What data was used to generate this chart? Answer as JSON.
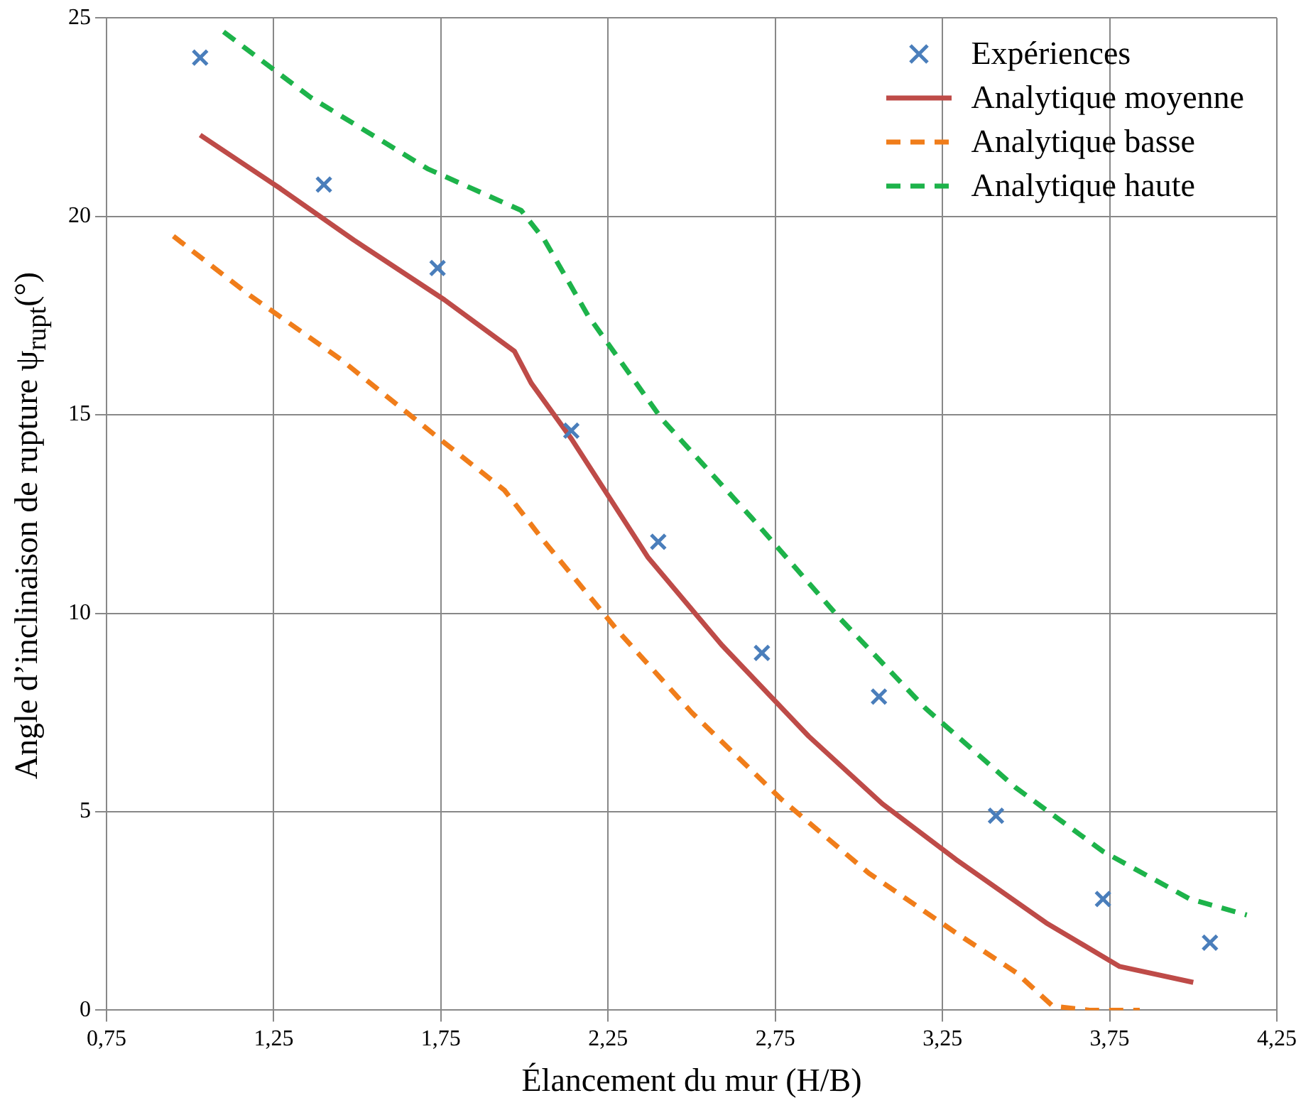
{
  "chart_data": {
    "type": "line",
    "xlabel": "Élancement du mur (H/B)",
    "ylabel": "Angle d’inclinaison de rupture ψ$_{rupt}$(°)",
    "xlim": [
      0.75,
      4.25
    ],
    "xticks": [
      {
        "value": 0.75,
        "label": "0,75"
      },
      {
        "value": 1.25,
        "label": "1,25"
      },
      {
        "value": 1.75,
        "label": "1,75"
      },
      {
        "value": 2.25,
        "label": "2,25"
      },
      {
        "value": 2.75,
        "label": "2,75"
      },
      {
        "value": 3.25,
        "label": "3,25"
      },
      {
        "value": 3.75,
        "label": "3,75"
      },
      {
        "value": 4.25,
        "label": "4,25"
      }
    ],
    "ylim": [
      0,
      25
    ],
    "yticks": [
      0,
      5,
      10,
      15,
      20,
      25
    ],
    "grid": true,
    "legend": "top right",
    "series": [
      {
        "name": "Expériences",
        "type": "scatter",
        "marker": "cross",
        "color": "#4a7ebb",
        "x": [
          1.03,
          1.4,
          1.74,
          2.14,
          2.4,
          2.71,
          3.06,
          3.41,
          3.73,
          4.05
        ],
        "values": [
          24.0,
          20.8,
          18.7,
          14.6,
          11.8,
          9.0,
          7.9,
          4.9,
          2.8,
          1.7
        ]
      },
      {
        "name": "Analytique moyenne",
        "type": "line",
        "line_style": "solid",
        "color": "#be4b48",
        "x": [
          1.03,
          1.27,
          1.49,
          1.76,
          1.97,
          2.02,
          2.14,
          2.37,
          2.59,
          2.85,
          3.07,
          3.29,
          3.56,
          3.78,
          4.0
        ],
        "values": [
          22.05,
          20.7,
          19.4,
          17.9,
          16.6,
          15.8,
          14.4,
          11.4,
          9.2,
          6.9,
          5.2,
          3.8,
          2.2,
          1.1,
          0.7
        ]
      },
      {
        "name": "Analytique basse",
        "type": "line",
        "line_style": "dashed",
        "color": "#f07d1a",
        "x": [
          0.95,
          1.18,
          1.45,
          1.76,
          1.94,
          2.06,
          2.28,
          2.5,
          2.77,
          3.03,
          3.29,
          3.47,
          3.58,
          3.69,
          3.84
        ],
        "values": [
          19.5,
          18.0,
          16.4,
          14.3,
          13.1,
          11.8,
          9.55,
          7.5,
          5.3,
          3.45,
          1.95,
          0.95,
          0.1,
          0,
          0
        ]
      },
      {
        "name": "Analytique haute",
        "type": "line",
        "line_style": "dashed",
        "color": "#1db34a",
        "x": [
          1.1,
          1.36,
          1.71,
          1.99,
          2.06,
          2.19,
          2.41,
          2.68,
          2.94,
          3.2,
          3.47,
          3.73,
          3.99,
          4.16
        ],
        "values": [
          24.65,
          23.0,
          21.2,
          20.15,
          19.4,
          17.5,
          14.9,
          12.4,
          9.9,
          7.6,
          5.6,
          4.0,
          2.8,
          2.4
        ]
      }
    ]
  }
}
